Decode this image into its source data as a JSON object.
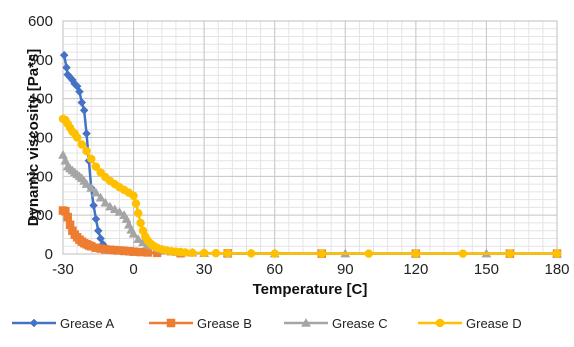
{
  "chart_data": {
    "type": "line",
    "xlabel": "Temperature [C]",
    "ylabel": "Dynamic viscosity [Pa*s]",
    "xlim": [
      -30,
      180
    ],
    "ylim": [
      0,
      600
    ],
    "x_ticks": [
      "-30",
      "0",
      "30",
      "60",
      "90",
      "120",
      "150",
      "180"
    ],
    "y_ticks": [
      "0",
      "100",
      "200",
      "300",
      "400",
      "500",
      "600"
    ],
    "grid": true,
    "legend_position": "bottom",
    "series": [
      {
        "name": "Grease A",
        "color": "#4472C4",
        "marker": "diamond",
        "x": [
          -29.5,
          -28.5,
          -28,
          -27,
          -26,
          -25,
          -24,
          -23,
          -22,
          -21,
          -20,
          -19,
          -18,
          -17,
          -16,
          -15,
          -14,
          -13,
          -12,
          -11,
          -10,
          -8,
          -5,
          0,
          5,
          10,
          20,
          40,
          80,
          120,
          160,
          180
        ],
        "y": [
          512,
          480,
          462,
          455,
          448,
          438,
          432,
          418,
          390,
          370,
          310,
          240,
          170,
          125,
          90,
          60,
          40,
          25,
          16,
          12,
          10,
          8,
          7,
          6,
          4,
          3,
          2,
          1.5,
          1,
          1,
          1,
          1
        ]
      },
      {
        "name": "Grease B",
        "color": "#ED7D31",
        "marker": "square",
        "x": [
          -30,
          -29,
          -28,
          -27,
          -26,
          -25,
          -24,
          -23,
          -22,
          -21,
          -20,
          -19,
          -18,
          -16,
          -14,
          -12,
          -10,
          -8,
          -6,
          -4,
          -2,
          0,
          3,
          6,
          10,
          20,
          40,
          80,
          120,
          160,
          180
        ],
        "y": [
          112,
          110,
          95,
          75,
          60,
          50,
          43,
          37,
          32,
          28,
          25,
          22,
          20,
          16,
          14,
          12,
          11,
          10,
          9,
          8,
          7,
          6,
          5,
          4,
          3,
          2,
          1.5,
          1,
          1,
          1,
          1
        ]
      },
      {
        "name": "Grease C",
        "color": "#A5A5A5",
        "marker": "triangle",
        "x": [
          -30,
          -29,
          -28,
          -27,
          -26,
          -25,
          -24,
          -23,
          -22,
          -21,
          -20,
          -18,
          -16,
          -14,
          -12,
          -10,
          -8,
          -6,
          -4,
          -3,
          -2,
          -1,
          0,
          2,
          4,
          6,
          8,
          10,
          12,
          14,
          16,
          18,
          20,
          25,
          30,
          40,
          60,
          90,
          120,
          150,
          180
        ],
        "y": [
          255,
          240,
          225,
          220,
          215,
          210,
          205,
          200,
          195,
          188,
          180,
          170,
          158,
          145,
          132,
          122,
          115,
          108,
          100,
          90,
          75,
          62,
          52,
          38,
          30,
          25,
          20,
          15,
          11,
          8,
          6,
          5,
          4,
          3,
          2,
          1.5,
          1,
          1,
          1,
          1,
          1
        ]
      },
      {
        "name": "Grease D",
        "color": "#FFC000",
        "marker": "circle",
        "x": [
          -30,
          -29,
          -28,
          -27,
          -26,
          -25,
          -24,
          -22,
          -20,
          -18,
          -16,
          -14,
          -12,
          -10,
          -8,
          -6,
          -4,
          -2,
          0,
          1,
          2,
          3,
          4,
          5,
          6,
          7,
          8,
          9,
          10,
          12,
          14,
          16,
          18,
          20,
          22,
          25,
          30,
          35,
          40,
          50,
          60,
          80,
          100,
          120,
          140,
          160,
          180
        ],
        "y": [
          348,
          345,
          335,
          325,
          315,
          310,
          300,
          282,
          265,
          245,
          225,
          210,
          198,
          188,
          180,
          172,
          165,
          158,
          150,
          130,
          105,
          80,
          60,
          45,
          35,
          28,
          23,
          19,
          16,
          12,
          9,
          7,
          6,
          5,
          4,
          3,
          2.5,
          2,
          2,
          1.5,
          1,
          1,
          1,
          1,
          1,
          1,
          1
        ]
      }
    ]
  }
}
